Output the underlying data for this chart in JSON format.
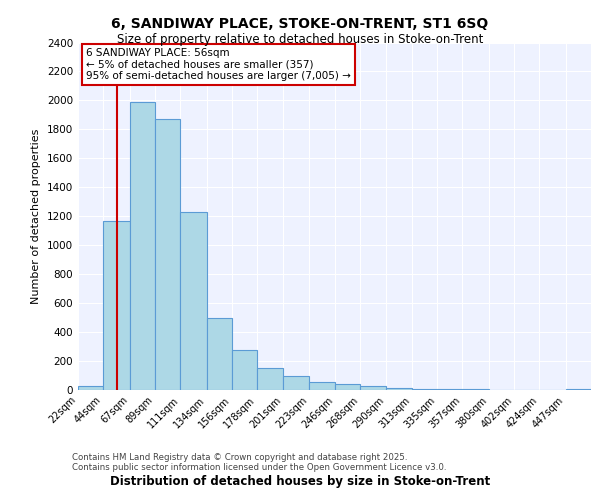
{
  "title_line1": "6, SANDIWAY PLACE, STOKE-ON-TRENT, ST1 6SQ",
  "title_line2": "Size of property relative to detached houses in Stoke-on-Trent",
  "xlabel": "Distribution of detached houses by size in Stoke-on-Trent",
  "ylabel": "Number of detached properties",
  "footer_line1": "Contains HM Land Registry data © Crown copyright and database right 2025.",
  "footer_line2": "Contains public sector information licensed under the Open Government Licence v3.0.",
  "annotation_title": "6 SANDIWAY PLACE: 56sqm",
  "annotation_line1": "← 5% of detached houses are smaller (357)",
  "annotation_line2": "95% of semi-detached houses are larger (7,005) →",
  "bar_color": "#add8e6",
  "bar_edge_color": "#5b9bd5",
  "red_line_x": 56,
  "bins": [
    22,
    44,
    67,
    89,
    111,
    134,
    156,
    178,
    201,
    223,
    246,
    268,
    290,
    313,
    335,
    357,
    380,
    402,
    424,
    447,
    469
  ],
  "counts": [
    30,
    1165,
    1990,
    1870,
    1230,
    500,
    275,
    155,
    100,
    55,
    40,
    30,
    15,
    10,
    5,
    5,
    3,
    3,
    2,
    10
  ],
  "ylim": [
    0,
    2400
  ],
  "yticks": [
    0,
    200,
    400,
    600,
    800,
    1000,
    1200,
    1400,
    1600,
    1800,
    2000,
    2200,
    2400
  ],
  "background_color": "#eef2ff",
  "grid_color": "#ffffff",
  "annotation_box_color": "#ffffff",
  "annotation_box_edge": "#cc0000"
}
